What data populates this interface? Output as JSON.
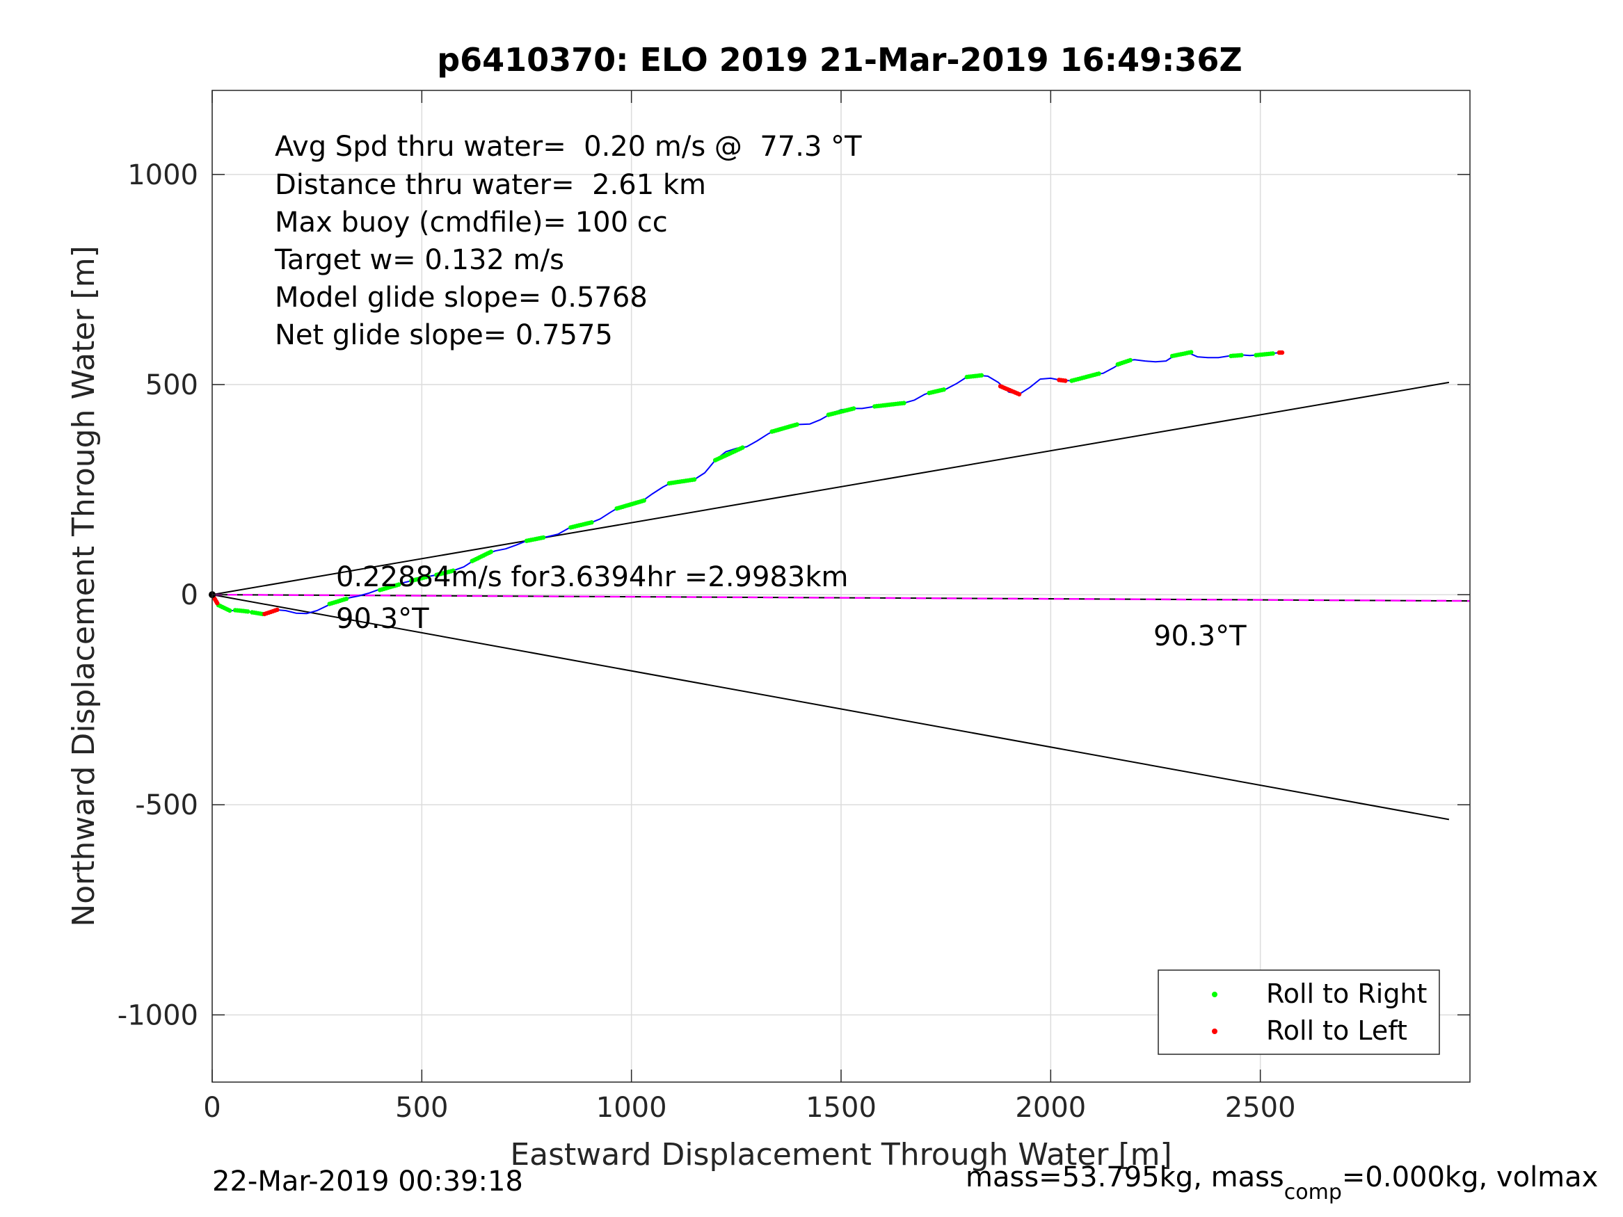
{
  "footer": {
    "timestamp": "22-Mar-2019 00:39:18",
    "mass_prefix": "mass=53.795kg, mass",
    "mass_sub": "comp",
    "mass_suffix": "=0.000kg, volmax"
  },
  "chart_data": {
    "type": "line",
    "title": "p6410370: ELO 2019 21-Mar-2019 16:49:36Z",
    "xlabel": "Eastward Displacement Through Water [m]",
    "ylabel": "Northward Displacement Through Water [m]",
    "xlim": [
      0,
      3000
    ],
    "ylim": [
      -1160,
      1200
    ],
    "xticks": [
      0,
      500,
      1000,
      1500,
      2000,
      2500
    ],
    "xtick_labels": [
      "0",
      "500",
      "1000",
      "1500",
      "2000",
      "2500"
    ],
    "yticks": [
      -1000,
      -500,
      0,
      500,
      1000
    ],
    "ytick_labels": [
      "-1000",
      "-500",
      "0",
      "500",
      "1000"
    ],
    "grid": true,
    "legend_position": "bottom-right",
    "stats": [
      "Avg Spd thru water=  0.20 m/s @  77.3 °T",
      "Distance thru water=  2.61 km",
      "Max buoy (cmdfile)= 100 cc",
      "Target w= 0.132 m/s",
      "Model glide slope= 0.5768",
      "Net glide slope= 0.7575"
    ],
    "annotations": {
      "current": "0.22884m/s for3.6394hr =2.9983km",
      "heading_near": "90.3°T",
      "heading_far": "90.3°T"
    },
    "colors": {
      "track": "#0000ff",
      "roll_right": "#00ff00",
      "roll_left": "#ff0000",
      "current_line": "#ff00ff",
      "reference_lines": "#000000"
    },
    "series": [
      {
        "type": "line",
        "values": [
          [
            0,
            0
          ],
          [
            10,
            -20
          ],
          [
            25,
            -32
          ],
          [
            45,
            -38
          ],
          [
            70,
            -38
          ],
          [
            95,
            -42
          ],
          [
            120,
            -46
          ],
          [
            135,
            -42
          ],
          [
            150,
            -36
          ],
          [
            175,
            -38
          ],
          [
            200,
            -44
          ],
          [
            225,
            -45
          ],
          [
            250,
            -38
          ],
          [
            275,
            -26
          ],
          [
            300,
            -13
          ],
          [
            325,
            -8
          ],
          [
            350,
            -3
          ],
          [
            375,
            4
          ],
          [
            400,
            13
          ],
          [
            425,
            20
          ],
          [
            450,
            27
          ],
          [
            475,
            33
          ],
          [
            500,
            40
          ],
          [
            525,
            45
          ],
          [
            550,
            50
          ],
          [
            575,
            57
          ],
          [
            600,
            66
          ],
          [
            625,
            82
          ],
          [
            650,
            95
          ],
          [
            675,
            104
          ],
          [
            700,
            109
          ],
          [
            725,
            118
          ],
          [
            750,
            128
          ],
          [
            775,
            134
          ],
          [
            800,
            138
          ],
          [
            825,
            144
          ],
          [
            850,
            158
          ],
          [
            875,
            166
          ],
          [
            900,
            170
          ],
          [
            925,
            180
          ],
          [
            950,
            196
          ],
          [
            975,
            211
          ],
          [
            1000,
            218
          ],
          [
            1025,
            222
          ],
          [
            1050,
            240
          ],
          [
            1075,
            256
          ],
          [
            1100,
            269
          ],
          [
            1125,
            272
          ],
          [
            1150,
            274
          ],
          [
            1175,
            290
          ],
          [
            1200,
            320
          ],
          [
            1225,
            340
          ],
          [
            1250,
            348
          ],
          [
            1275,
            352
          ],
          [
            1300,
            366
          ],
          [
            1325,
            382
          ],
          [
            1350,
            395
          ],
          [
            1375,
            402
          ],
          [
            1400,
            405
          ],
          [
            1425,
            406
          ],
          [
            1450,
            416
          ],
          [
            1475,
            430
          ],
          [
            1500,
            440
          ],
          [
            1525,
            443
          ],
          [
            1550,
            443
          ],
          [
            1575,
            447
          ],
          [
            1600,
            453
          ],
          [
            1625,
            456
          ],
          [
            1650,
            456
          ],
          [
            1675,
            463
          ],
          [
            1700,
            477
          ],
          [
            1725,
            485
          ],
          [
            1750,
            489
          ],
          [
            1775,
            502
          ],
          [
            1800,
            518
          ],
          [
            1825,
            522
          ],
          [
            1850,
            520
          ],
          [
            1875,
            505
          ],
          [
            1900,
            482
          ],
          [
            1925,
            477
          ],
          [
            1950,
            493
          ],
          [
            1975,
            513
          ],
          [
            2000,
            515
          ],
          [
            2025,
            510
          ],
          [
            2050,
            509
          ],
          [
            2075,
            516
          ],
          [
            2100,
            523
          ],
          [
            2125,
            527
          ],
          [
            2150,
            540
          ],
          [
            2175,
            556
          ],
          [
            2200,
            559
          ],
          [
            2225,
            556
          ],
          [
            2250,
            554
          ],
          [
            2275,
            556
          ],
          [
            2300,
            572
          ],
          [
            2325,
            577
          ],
          [
            2350,
            566
          ],
          [
            2375,
            564
          ],
          [
            2400,
            564
          ],
          [
            2425,
            568
          ],
          [
            2450,
            571
          ],
          [
            2475,
            569
          ],
          [
            2500,
            571
          ],
          [
            2525,
            574
          ],
          [
            2550,
            576
          ]
        ]
      },
      {
        "type": "line",
        "values": [
          [
            0,
            0
          ],
          [
            2950,
            505
          ]
        ]
      },
      {
        "type": "line",
        "values": [
          [
            0,
            0
          ],
          [
            2950,
            -535
          ]
        ]
      },
      {
        "type": "line",
        "values": [
          [
            0,
            0
          ],
          [
            3000,
            -15
          ]
        ]
      },
      {
        "type": "line",
        "dashed": true,
        "values": [
          [
            0,
            0
          ],
          [
            3000,
            -15
          ]
        ]
      },
      {
        "name": "Roll to Right",
        "type": "scatter",
        "values": [
          [
            [
              15,
              -25
            ],
            [
              42,
              -38
            ]
          ],
          [
            [
              55,
              -37
            ],
            [
              85,
              -40
            ]
          ],
          [
            [
              95,
              -42
            ],
            [
              120,
              -46
            ]
          ],
          [
            [
              280,
              -22
            ],
            [
              320,
              -10
            ]
          ],
          [
            [
              400,
              11
            ],
            [
              445,
              24
            ]
          ],
          [
            [
              475,
              33
            ],
            [
              515,
              43
            ]
          ],
          [
            [
              535,
              47
            ],
            [
              575,
              57
            ]
          ],
          [
            [
              620,
              80
            ],
            [
              665,
              102
            ]
          ],
          [
            [
              750,
              128
            ],
            [
              790,
              136
            ]
          ],
          [
            [
              855,
              160
            ],
            [
              905,
              172
            ]
          ],
          [
            [
              965,
              205
            ],
            [
              1030,
              224
            ]
          ],
          [
            [
              1090,
              265
            ],
            [
              1150,
              274
            ]
          ],
          [
            [
              1200,
              320
            ],
            [
              1265,
              350
            ]
          ],
          [
            [
              1335,
              388
            ],
            [
              1395,
              405
            ]
          ],
          [
            [
              1470,
              428
            ],
            [
              1530,
              443
            ]
          ],
          [
            [
              1580,
              448
            ],
            [
              1650,
              456
            ]
          ],
          [
            [
              1710,
              480
            ],
            [
              1745,
              488
            ]
          ],
          [
            [
              1800,
              518
            ],
            [
              1835,
              522
            ]
          ],
          [
            [
              2050,
              509
            ],
            [
              2115,
              526
            ]
          ],
          [
            [
              2160,
              548
            ],
            [
              2190,
              558
            ]
          ],
          [
            [
              2290,
              568
            ],
            [
              2335,
              577
            ]
          ],
          [
            [
              2430,
              568
            ],
            [
              2455,
              570
            ]
          ],
          [
            [
              2490,
              570
            ],
            [
              2530,
              574
            ]
          ]
        ]
      },
      {
        "name": "Roll to Left",
        "type": "scatter",
        "values": [
          [
            [
              0,
              0
            ],
            [
              12,
              -20
            ]
          ],
          [
            [
              125,
              -46
            ],
            [
              155,
              -36
            ]
          ],
          [
            [
              1880,
              496
            ],
            [
              1925,
              477
            ]
          ],
          [
            [
              2020,
              511
            ],
            [
              2035,
              509
            ]
          ],
          [
            [
              2545,
              576
            ],
            [
              2552,
              576
            ]
          ]
        ]
      }
    ]
  }
}
